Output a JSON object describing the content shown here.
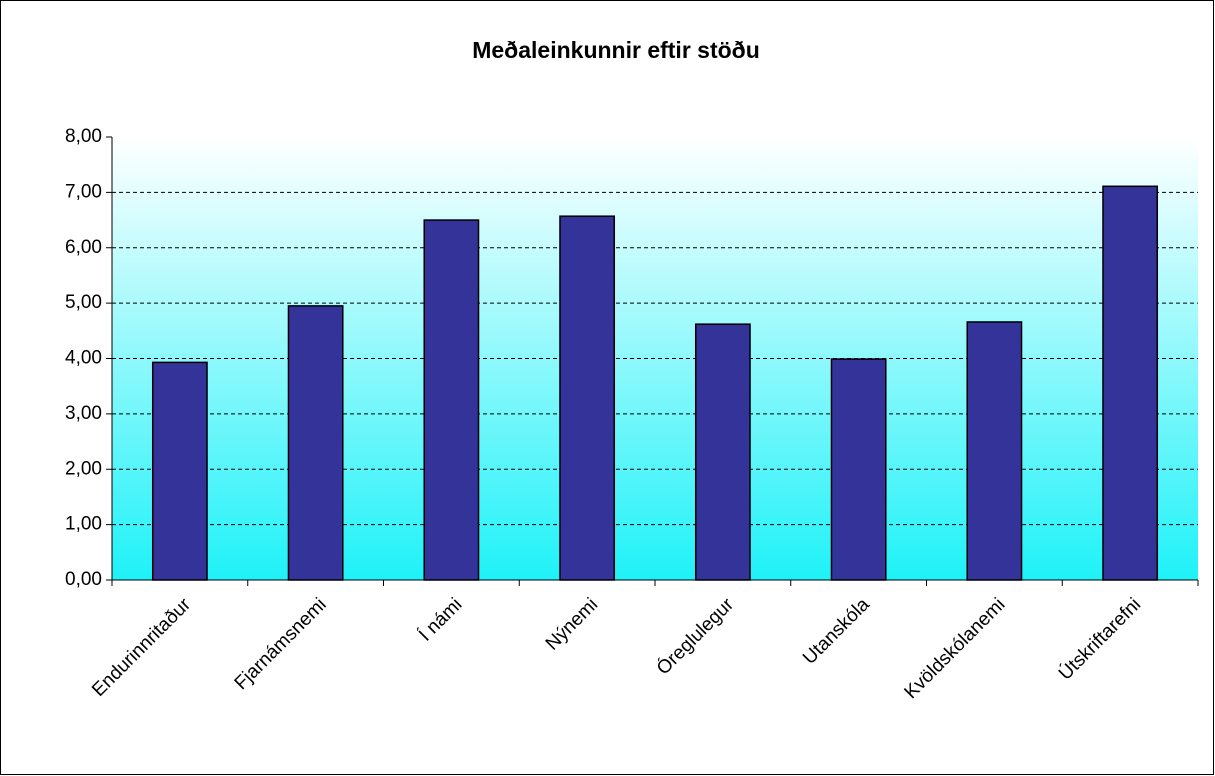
{
  "chart_data": {
    "type": "bar",
    "title": "Meðaleinkunnir eftir stöðu",
    "categories": [
      "Endurinnritaður",
      "Fjarnámsnemi",
      "Í námi",
      "Nýnemi",
      "Óreglulegur",
      "Utanskóla",
      "Kvöldskólanemi",
      "Útskriftarefni"
    ],
    "values": [
      3.93,
      4.95,
      6.5,
      6.57,
      4.62,
      3.99,
      4.66,
      7.11
    ],
    "color": "#333399",
    "ylim": [
      0,
      8
    ],
    "yticks": [
      {
        "value": 0,
        "label": "0,00"
      },
      {
        "value": 1,
        "label": "1,00"
      },
      {
        "value": 2,
        "label": "2,00"
      },
      {
        "value": 3,
        "label": "3,00"
      },
      {
        "value": 4,
        "label": "4,00"
      },
      {
        "value": 5,
        "label": "5,00"
      },
      {
        "value": 6,
        "label": "6,00"
      },
      {
        "value": 7,
        "label": "7,00"
      },
      {
        "value": 8,
        "label": "8,00"
      }
    ],
    "grid": true
  }
}
